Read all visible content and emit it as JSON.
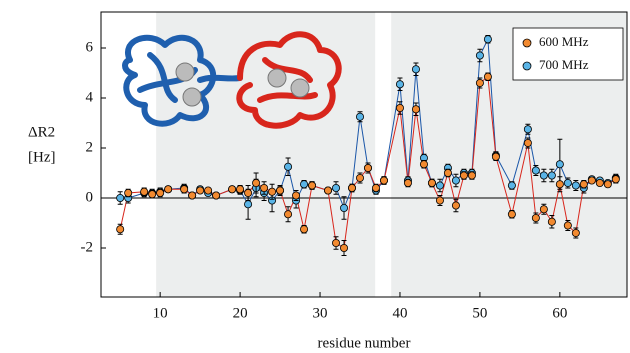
{
  "chart_data": {
    "type": "line",
    "x_label": "residue number",
    "y_label": [
      "ΔR2",
      "[Hz]"
    ],
    "x": [
      5,
      6,
      8,
      9,
      10,
      11,
      13,
      14,
      15,
      16,
      17,
      19,
      20,
      21,
      22,
      23,
      24,
      25,
      26,
      27,
      28,
      29,
      31,
      32,
      33,
      34,
      35,
      36,
      37,
      38,
      40,
      41,
      42,
      43,
      44,
      45,
      46,
      47,
      48,
      49,
      50,
      51,
      52,
      54,
      56,
      57,
      58,
      59,
      60,
      61,
      62,
      63,
      64,
      65,
      66,
      67
    ],
    "series": [
      {
        "name": "600 MHz",
        "color": "#f28a30",
        "line_color": "#d8261c",
        "values": [
          -1.25,
          0.2,
          0.25,
          0.15,
          0.2,
          0.35,
          0.35,
          0.1,
          0.3,
          0.3,
          0.1,
          0.35,
          0.35,
          0.2,
          0.6,
          0.4,
          0.25,
          0.3,
          -0.65,
          0.1,
          -1.25,
          0.5,
          0.3,
          -1.8,
          -2.0,
          0.4,
          0.8,
          1.2,
          0.4,
          0.7,
          3.6,
          0.6,
          3.55,
          1.35,
          0.6,
          -0.1,
          1.0,
          -0.3,
          0.9,
          0.9,
          4.6,
          4.85,
          1.65,
          -0.65,
          2.2,
          -0.8,
          -0.45,
          -0.95,
          0.55,
          -1.1,
          -1.4,
          0.55,
          0.7,
          0.6,
          0.55,
          0.75
        ],
        "errors": [
          0.2,
          0.15,
          0.15,
          0.15,
          0.15,
          0.1,
          0.15,
          0.1,
          0.1,
          0.1,
          0.1,
          0.1,
          0.15,
          0.3,
          0.4,
          0.25,
          0.3,
          0.15,
          0.3,
          0.2,
          0.15,
          0.15,
          0.1,
          0.25,
          0.3,
          0.15,
          0.2,
          0.2,
          0.15,
          0.15,
          0.25,
          0.15,
          0.25,
          0.15,
          0.15,
          0.2,
          0.15,
          0.25,
          0.15,
          0.15,
          0.2,
          0.15,
          0.15,
          0.15,
          0.2,
          0.2,
          0.2,
          0.25,
          0.3,
          0.2,
          0.2,
          0.15,
          0.1,
          0.1,
          0.1,
          0.15
        ]
      },
      {
        "name": "700 MHz",
        "color": "#5ab4e6",
        "line_color": "#1a56a8",
        "values": [
          0.0,
          0.0,
          0.2,
          0.2,
          0.25,
          0.35,
          0.4,
          0.1,
          0.35,
          0.2,
          0.1,
          0.35,
          0.3,
          -0.25,
          0.4,
          0.2,
          -0.1,
          0.3,
          1.25,
          -0.1,
          0.55,
          0.5,
          0.3,
          0.4,
          -0.4,
          0.4,
          3.25,
          1.2,
          0.3,
          0.7,
          4.55,
          0.7,
          5.15,
          1.6,
          0.6,
          0.5,
          1.2,
          0.7,
          1.0,
          1.0,
          5.7,
          6.35,
          1.7,
          0.5,
          2.75,
          1.1,
          0.9,
          0.9,
          1.35,
          0.6,
          0.5,
          0.4,
          0.75,
          0.7,
          0.6,
          0.8
        ],
        "errors": [
          0.25,
          0.2,
          0.15,
          0.15,
          0.15,
          0.1,
          0.15,
          0.1,
          0.1,
          0.1,
          0.1,
          0.1,
          0.15,
          0.6,
          0.35,
          0.3,
          0.45,
          0.2,
          0.35,
          0.3,
          0.15,
          0.15,
          0.1,
          0.25,
          0.45,
          0.15,
          0.2,
          0.2,
          0.15,
          0.15,
          0.25,
          0.15,
          0.25,
          0.15,
          0.15,
          0.25,
          0.15,
          0.25,
          0.15,
          0.15,
          0.25,
          0.15,
          0.15,
          0.15,
          0.2,
          0.2,
          0.25,
          0.25,
          1.0,
          0.2,
          0.2,
          0.2,
          0.1,
          0.1,
          0.1,
          0.15
        ]
      }
    ],
    "shaded_regions": [
      [
        9.5,
        36.9
      ],
      [
        38.9,
        68.4
      ]
    ],
    "xlim": [
      2.6,
      68.4
    ],
    "ylim": [
      -3.96,
      7.44
    ],
    "xticks": [
      10,
      20,
      30,
      40,
      50,
      60
    ],
    "yticks": [
      -2,
      0,
      2,
      4,
      6
    ],
    "zero_line": true,
    "legend": "top-right"
  }
}
